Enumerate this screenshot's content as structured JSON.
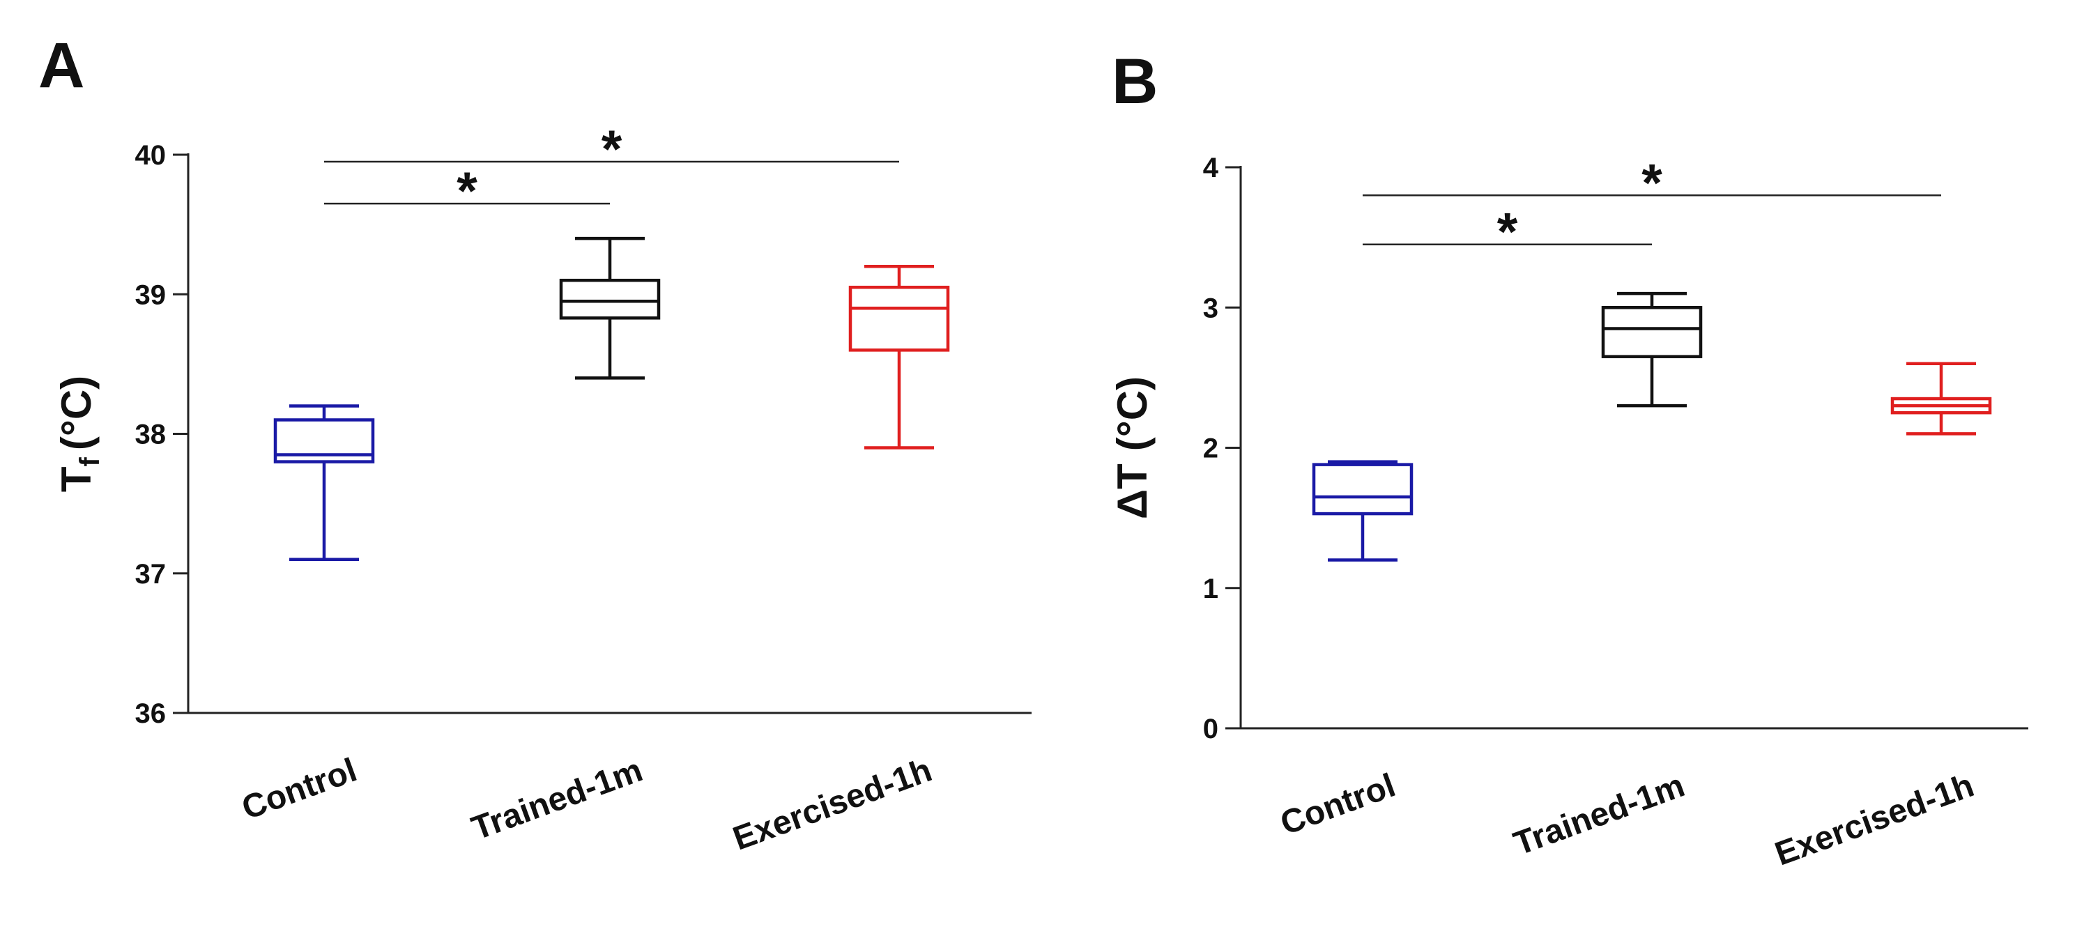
{
  "chart_data": [
    {
      "type": "box",
      "panel_label": "A",
      "ylabel_main": "T",
      "ylabel_sub": "f",
      "ylabel_unit": "(°C)",
      "ylim": [
        36,
        40
      ],
      "yticks": [
        "36",
        "37",
        "38",
        "39",
        "40"
      ],
      "categories": [
        "Control",
        "Trained-1m",
        "Exercised-1h"
      ],
      "boxes": [
        {
          "category": "Control",
          "min": 37.1,
          "q1": 37.8,
          "median": 37.85,
          "q3": 38.1,
          "max": 38.2,
          "color": "#1a1aa6"
        },
        {
          "category": "Trained-1m",
          "min": 38.4,
          "q1": 38.83,
          "median": 38.95,
          "q3": 39.1,
          "max": 39.4,
          "color": "#111111"
        },
        {
          "category": "Exercised-1h",
          "min": 37.9,
          "q1": 38.6,
          "median": 38.9,
          "q3": 39.05,
          "max": 39.2,
          "color": "#e01f1f"
        }
      ],
      "significance": [
        {
          "from": "Control",
          "to": "Trained-1m",
          "y": 39.65,
          "label": "*"
        },
        {
          "from": "Control",
          "to": "Exercised-1h",
          "y": 39.95,
          "label": "*"
        }
      ]
    },
    {
      "type": "box",
      "panel_label": "B",
      "ylabel_main": "ΔT",
      "ylabel_sub": "",
      "ylabel_unit": "(°C)",
      "ylim": [
        0,
        4
      ],
      "yticks": [
        "0",
        "1",
        "2",
        "3",
        "4"
      ],
      "categories": [
        "Control",
        "Trained-1m",
        "Exercised-1h"
      ],
      "boxes": [
        {
          "category": "Control",
          "min": 1.2,
          "q1": 1.53,
          "median": 1.65,
          "q3": 1.88,
          "max": 1.9,
          "color": "#1a1aa6"
        },
        {
          "category": "Trained-1m",
          "min": 2.3,
          "q1": 2.65,
          "median": 2.85,
          "q3": 3.0,
          "max": 3.1,
          "color": "#111111"
        },
        {
          "category": "Exercised-1h",
          "min": 2.1,
          "q1": 2.25,
          "median": 2.3,
          "q3": 2.35,
          "max": 2.6,
          "color": "#e01f1f"
        }
      ],
      "significance": [
        {
          "from": "Control",
          "to": "Trained-1m",
          "y": 3.45,
          "label": "*"
        },
        {
          "from": "Control",
          "to": "Exercised-1h",
          "y": 3.8,
          "label": "*"
        }
      ]
    }
  ]
}
